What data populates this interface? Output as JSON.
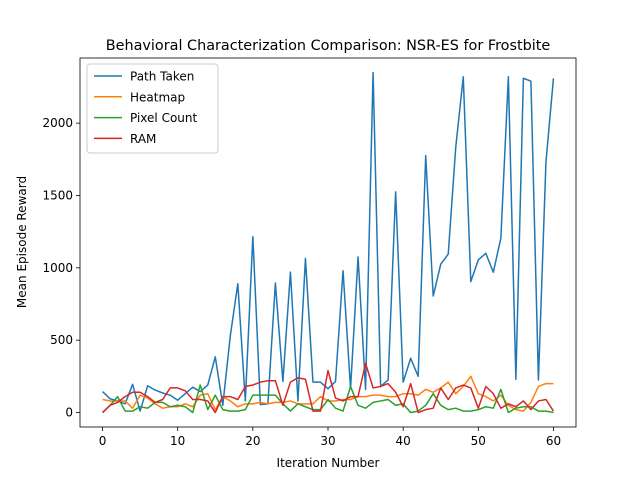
{
  "chart_data": {
    "type": "line",
    "title": "Behavioral Characterization Comparison: NSR-ES for Frostbite",
    "xlabel": "Iteration Number",
    "ylabel": "Mean Episode Reward",
    "xlim": [
      -3,
      63
    ],
    "ylim": [
      -100,
      2450
    ],
    "xticks": [
      0,
      10,
      20,
      30,
      40,
      50,
      60
    ],
    "yticks": [
      0,
      500,
      1000,
      1500,
      2000
    ],
    "grid": false,
    "legend_position": "top-left",
    "x": [
      0,
      1,
      2,
      3,
      4,
      5,
      6,
      7,
      8,
      9,
      10,
      11,
      12,
      13,
      14,
      15,
      16,
      17,
      18,
      19,
      20,
      21,
      22,
      23,
      24,
      25,
      26,
      27,
      28,
      29,
      30,
      31,
      32,
      33,
      34,
      35,
      36,
      37,
      38,
      39,
      40,
      41,
      42,
      43,
      44,
      45,
      46,
      47,
      48,
      49,
      50,
      51,
      52,
      53,
      54,
      55,
      56,
      57,
      58,
      59,
      60
    ],
    "series": [
      {
        "name": "Path Taken",
        "color": "#1f77b4",
        "values": [
          145,
          95,
          80,
          60,
          195,
          10,
          185,
          155,
          135,
          120,
          85,
          130,
          175,
          145,
          190,
          385,
          50,
          530,
          890,
          80,
          1215,
          55,
          60,
          895,
          215,
          970,
          80,
          1065,
          210,
          210,
          165,
          215,
          980,
          165,
          1075,
          160,
          2350,
          180,
          225,
          1525,
          210,
          375,
          250,
          1775,
          805,
          1025,
          1095,
          1835,
          2320,
          905,
          1055,
          1100,
          970,
          1205,
          2320,
          230,
          2310,
          2290,
          225,
          1730,
          2310
        ]
      },
      {
        "name": "Heatmap",
        "color": "#ff7f0e",
        "values": [
          90,
          80,
          80,
          80,
          30,
          120,
          100,
          60,
          30,
          40,
          40,
          60,
          40,
          120,
          130,
          20,
          110,
          80,
          40,
          60,
          60,
          70,
          60,
          70,
          70,
          80,
          60,
          60,
          60,
          110,
          80,
          80,
          90,
          90,
          110,
          110,
          120,
          120,
          110,
          110,
          130,
          130,
          120,
          160,
          140,
          170,
          210,
          130,
          180,
          250,
          130,
          110,
          80,
          120,
          50,
          20,
          10,
          70,
          180,
          200,
          200
        ]
      },
      {
        "name": "Pixel Count",
        "color": "#2ca02c",
        "values": [
          0,
          50,
          110,
          10,
          10,
          40,
          30,
          70,
          70,
          40,
          50,
          40,
          0,
          190,
          20,
          120,
          20,
          10,
          10,
          20,
          120,
          120,
          120,
          120,
          60,
          10,
          60,
          40,
          20,
          20,
          90,
          30,
          10,
          180,
          50,
          30,
          70,
          80,
          90,
          50,
          60,
          0,
          10,
          50,
          130,
          50,
          20,
          30,
          10,
          10,
          20,
          40,
          30,
          160,
          0,
          30,
          40,
          40,
          10,
          10,
          0
        ]
      },
      {
        "name": "RAM",
        "color": "#d62728",
        "values": [
          0,
          50,
          70,
          110,
          140,
          140,
          110,
          70,
          90,
          170,
          170,
          150,
          90,
          90,
          80,
          0,
          110,
          110,
          90,
          180,
          190,
          210,
          220,
          220,
          50,
          210,
          240,
          230,
          10,
          10,
          290,
          100,
          80,
          110,
          110,
          340,
          170,
          180,
          200,
          140,
          40,
          200,
          0,
          20,
          30,
          170,
          90,
          170,
          190,
          170,
          30,
          180,
          130,
          30,
          60,
          40,
          80,
          20,
          80,
          90,
          10
        ]
      }
    ]
  }
}
